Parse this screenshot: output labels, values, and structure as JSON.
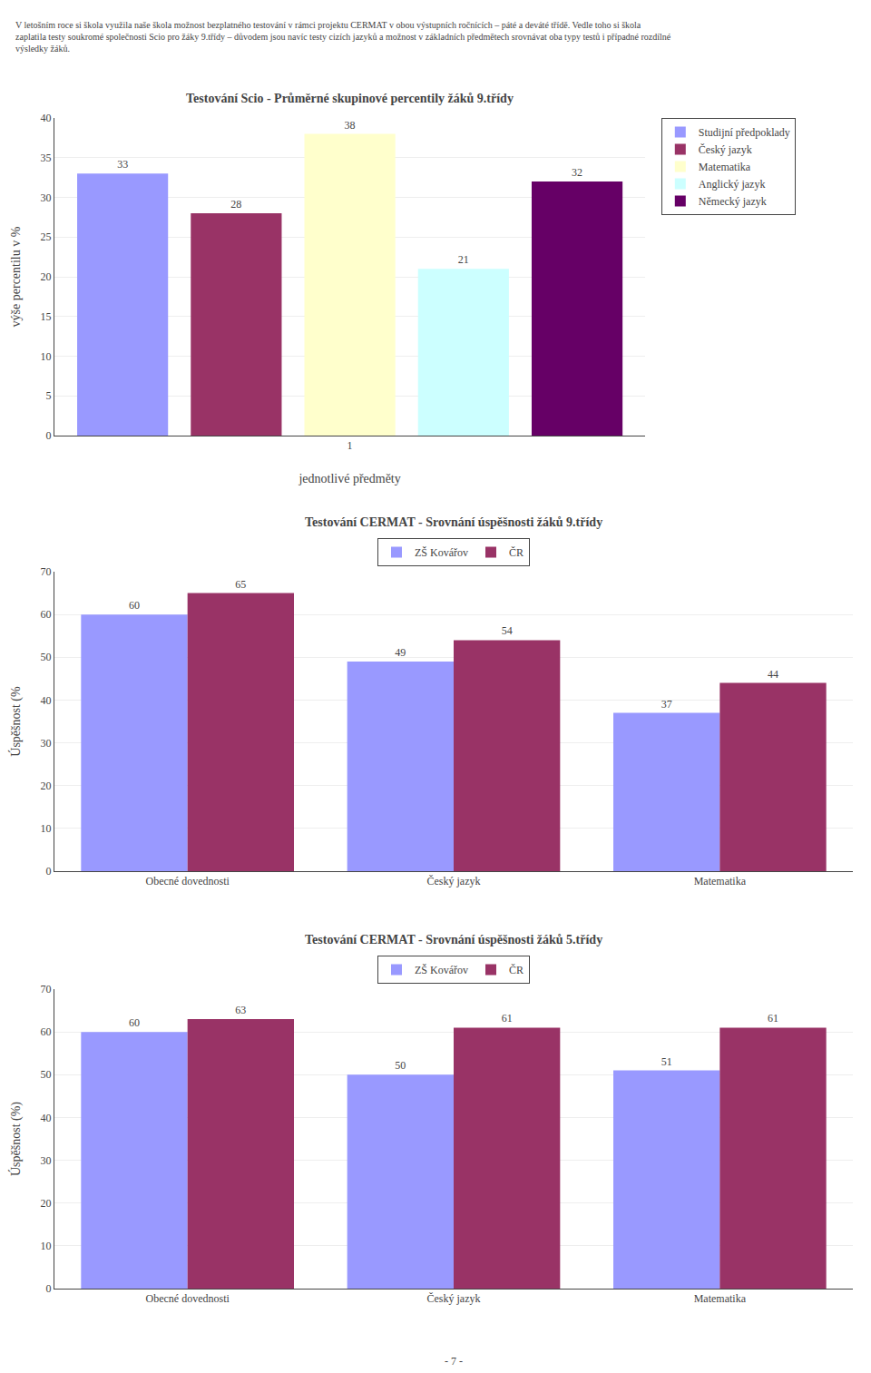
{
  "text": [
    "V letošním roce si škola využila naše škola možnost bezplatného testování v rámci projektu CERMAT v obou výstupních ročnících – páté a deváté třídě. Vedle toho si škola",
    "zaplatila testy soukromé společnosti Scio pro žáky 9.třídy – důvodem jsou navíc testy cizích jazyků a možnost v základních předmětech srovnávat oba typy testů i případné rozdílné",
    "výsledky žáků."
  ],
  "page_number": "- 7 -",
  "chart_data": [
    {
      "type": "bar",
      "title": "Testování Scio - Průměrné skupinové percentily žáků 9.třídy",
      "xlabel": "jednotlivé předměty",
      "ylabel": "výše percentilu v %",
      "categories": [
        null,
        null,
        "1",
        null,
        null
      ],
      "series": [
        {
          "name": "Studijní předpoklady",
          "color": "#9999FF",
          "values": [
            33,
            null,
            null,
            null,
            null
          ]
        },
        {
          "name": "Český jazyk",
          "color": "#993366",
          "values": [
            null,
            28,
            null,
            null,
            null
          ]
        },
        {
          "name": "Matematika",
          "color": "#FFFFCC",
          "values": [
            null,
            null,
            38,
            null,
            null
          ]
        },
        {
          "name": "Anglický jazyk",
          "color": "#CCFFFF",
          "values": [
            null,
            null,
            null,
            21,
            null
          ]
        },
        {
          "name": "Německý jazyk",
          "color": "#660066",
          "values": [
            null,
            null,
            null,
            null,
            32
          ]
        }
      ],
      "ylim": [
        0,
        40
      ],
      "yticks": [
        0,
        5,
        10,
        15,
        20,
        25,
        30,
        35,
        40
      ],
      "grid": true,
      "legend": "upper right",
      "data_labels": true
    },
    {
      "type": "bar",
      "title": "Testování CERMAT - Srovnání úspěšnosti žáků 9.třídy",
      "ylabel": "Úspěšnost (%",
      "categories": [
        "Obecné dovednosti",
        "Český jazyk",
        "Matematika"
      ],
      "series": [
        {
          "name": "ZŠ Kovářov",
          "color": "#9999FF",
          "values": [
            60,
            49,
            37
          ]
        },
        {
          "name": "ČR",
          "color": "#993366",
          "values": [
            65,
            54,
            44
          ]
        }
      ],
      "ylim": [
        0,
        70
      ],
      "yticks": [
        0,
        10,
        20,
        30,
        40,
        50,
        60,
        70
      ],
      "grid": true,
      "legend": "upper center",
      "data_labels": true
    },
    {
      "type": "bar",
      "title": "Testování CERMAT - Srovnání úspěšnosti žáků 5.třídy",
      "ylabel": "Úspěšnost (%)",
      "categories": [
        "Obecné dovednosti",
        "Český jazyk",
        "Matematika"
      ],
      "series": [
        {
          "name": "ZŠ Kovářov",
          "color": "#9999FF",
          "values": [
            60,
            50,
            51
          ]
        },
        {
          "name": "ČR",
          "color": "#993366",
          "values": [
            63,
            61,
            61
          ]
        }
      ],
      "ylim": [
        0,
        70
      ],
      "yticks": [
        0,
        10,
        20,
        30,
        40,
        50,
        60,
        70
      ],
      "grid": true,
      "legend": "upper center",
      "data_labels": true
    }
  ]
}
